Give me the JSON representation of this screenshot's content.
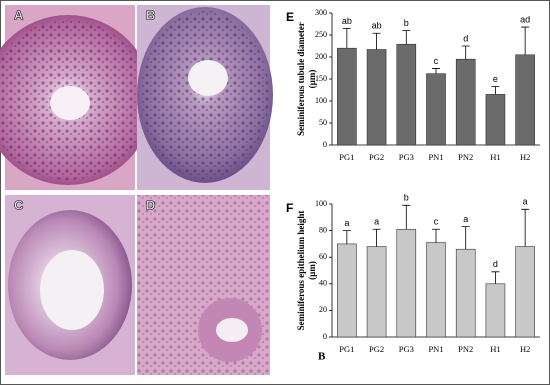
{
  "panels": [
    {
      "label": "A"
    },
    {
      "label": "B"
    },
    {
      "label": "C"
    },
    {
      "label": "D"
    }
  ],
  "chart_data": [
    {
      "type": "bar",
      "label": "E",
      "ylabel": "Seminiferous tubule diameter",
      "ylabel_unit": "(µm)",
      "categories": [
        "PG1",
        "PG2",
        "PG3",
        "PN1",
        "PN2",
        "H1",
        "H2"
      ],
      "values": [
        220,
        217,
        229,
        162,
        195,
        115,
        205
      ],
      "errors": [
        45,
        37,
        31,
        12,
        30,
        18,
        63
      ],
      "letters": [
        "ab",
        "ab",
        "b",
        "c",
        "d",
        "e",
        "ad"
      ],
      "color": "#6b6b6b",
      "ylim": [
        0,
        300
      ],
      "yticks": [
        0,
        50,
        100,
        150,
        200,
        250,
        300
      ]
    },
    {
      "type": "bar",
      "label": "F",
      "ylabel": "Seminiferous epithelium height",
      "ylabel_unit": "(µm)",
      "categories": [
        "PG1",
        "PG2",
        "PG3",
        "PN1",
        "PN2",
        "H1",
        "H2"
      ],
      "values": [
        70,
        68,
        81,
        71,
        66,
        40,
        68
      ],
      "errors": [
        10,
        13,
        18,
        10,
        17,
        9,
        28
      ],
      "letters": [
        "a",
        "a",
        "b",
        "c",
        "a",
        "d",
        "a"
      ],
      "annotation": "B",
      "color": "#c8c8c8",
      "ylim": [
        0,
        100
      ],
      "yticks": [
        0,
        20,
        40,
        60,
        80,
        100
      ]
    }
  ]
}
